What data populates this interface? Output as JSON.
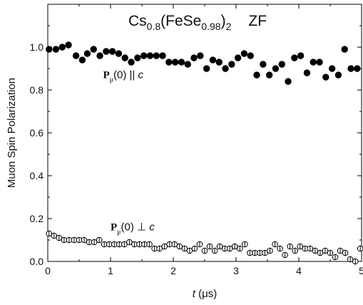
{
  "chart_data": {
    "type": "scatter",
    "title": {
      "base": "Cs",
      "sub1": "0.8",
      "mid": "(FeSe",
      "sub2": "0.98",
      "close": ")",
      "sub3": "2",
      "tag": "ZF"
    },
    "xlabel": {
      "var": "t",
      "unit": " (μs)"
    },
    "ylabel": "Muon Spin Polarization",
    "xlim": [
      0,
      5
    ],
    "ylim": [
      0,
      1.2
    ],
    "xticks": [
      0,
      1,
      2,
      3,
      4,
      5
    ],
    "yticks": [
      0.0,
      0.2,
      0.4,
      0.6,
      0.8,
      1.0
    ],
    "ytick_labels": [
      "0.0",
      "0.2",
      "0.4",
      "0.6",
      "0.8",
      "1.0"
    ],
    "grid": false,
    "annotations": [
      {
        "id": "parallel",
        "bold": "P",
        "sub": "μ",
        "rest": "(0) || ",
        "italic": "c",
        "x": 0.88,
        "y": 0.855
      },
      {
        "id": "perp",
        "bold": "P",
        "sub": "μ",
        "rest": "(0) ⊥ ",
        "italic": "c",
        "x": 1.0,
        "y": 0.145
      }
    ],
    "series": [
      {
        "marker": "filled-circle",
        "x": [
          0.02,
          0.13,
          0.23,
          0.33,
          0.45,
          0.55,
          0.63,
          0.73,
          0.83,
          0.93,
          1.03,
          1.13,
          1.23,
          1.33,
          1.43,
          1.53,
          1.63,
          1.73,
          1.83,
          1.93,
          2.03,
          2.13,
          2.23,
          2.33,
          2.43,
          2.53,
          2.63,
          2.73,
          2.83,
          2.93,
          3.03,
          3.13,
          3.23,
          3.33,
          3.43,
          3.53,
          3.63,
          3.73,
          3.83,
          3.93,
          4.03,
          4.13,
          4.23,
          4.33,
          4.43,
          4.53,
          4.63,
          4.73,
          4.83,
          4.93
        ],
        "y": [
          0.99,
          0.99,
          1.0,
          1.01,
          0.96,
          0.94,
          0.97,
          0.99,
          0.96,
          0.98,
          0.98,
          0.97,
          0.95,
          0.93,
          0.95,
          0.96,
          0.96,
          0.96,
          0.96,
          0.93,
          0.93,
          0.93,
          0.92,
          0.95,
          0.96,
          0.9,
          0.94,
          0.93,
          0.9,
          0.92,
          0.95,
          0.97,
          0.96,
          0.87,
          0.92,
          0.87,
          0.9,
          0.92,
          0.84,
          0.95,
          0.96,
          0.88,
          0.93,
          0.93,
          0.86,
          0.9,
          0.87,
          0.99,
          0.9,
          0.9
        ]
      },
      {
        "marker": "open-circle",
        "x": [
          0.02,
          0.1,
          0.18,
          0.26,
          0.34,
          0.42,
          0.5,
          0.58,
          0.66,
          0.74,
          0.82,
          0.9,
          0.98,
          1.06,
          1.14,
          1.22,
          1.3,
          1.38,
          1.46,
          1.54,
          1.62,
          1.7,
          1.78,
          1.86,
          1.94,
          2.02,
          2.1,
          2.18,
          2.26,
          2.34,
          2.42,
          2.5,
          2.58,
          2.66,
          2.74,
          2.82,
          2.9,
          2.98,
          3.06,
          3.14,
          3.22,
          3.3,
          3.38,
          3.46,
          3.54,
          3.62,
          3.7,
          3.78,
          3.86,
          3.94,
          4.02,
          4.1,
          4.18,
          4.26,
          4.34,
          4.42,
          4.5,
          4.58,
          4.66,
          4.74,
          4.82,
          4.9,
          4.98
        ],
        "y": [
          0.13,
          0.12,
          0.11,
          0.1,
          0.1,
          0.1,
          0.1,
          0.1,
          0.09,
          0.09,
          0.1,
          0.08,
          0.08,
          0.08,
          0.08,
          0.08,
          0.09,
          0.08,
          0.08,
          0.08,
          0.08,
          0.06,
          0.06,
          0.07,
          0.08,
          0.08,
          0.07,
          0.06,
          0.05,
          0.06,
          0.08,
          0.05,
          0.07,
          0.05,
          0.07,
          0.06,
          0.06,
          0.07,
          0.06,
          0.08,
          0.04,
          0.04,
          0.04,
          0.04,
          0.05,
          0.08,
          0.06,
          0.03,
          0.07,
          0.05,
          0.07,
          0.06,
          0.06,
          0.05,
          0.04,
          0.05,
          0.04,
          0.02,
          0.05,
          0.04,
          0.01,
          0.0,
          0.06
        ]
      }
    ]
  }
}
